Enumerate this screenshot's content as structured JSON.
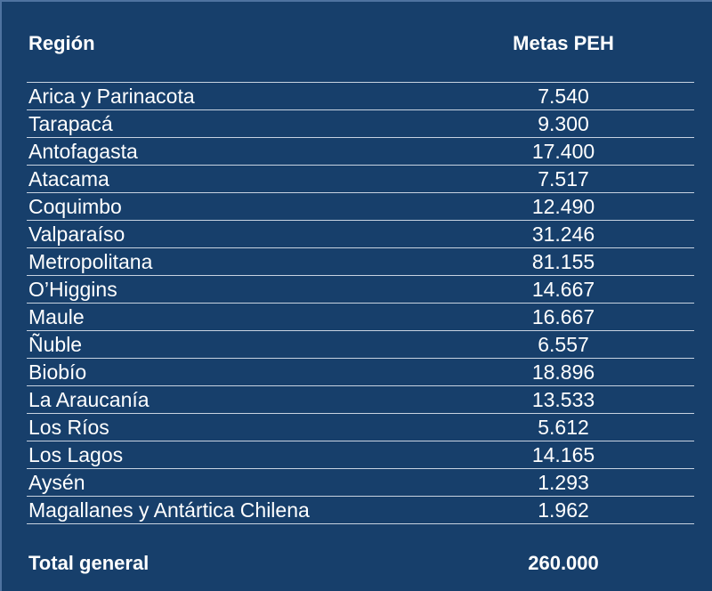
{
  "chart_data": {
    "type": "table",
    "columns": [
      "Región",
      "Metas PEH"
    ],
    "rows": [
      {
        "region": "Arica y Parinacota",
        "value": "7.540"
      },
      {
        "region": "Tarapacá",
        "value": "9.300"
      },
      {
        "region": "Antofagasta",
        "value": "17.400"
      },
      {
        "region": "Atacama",
        "value": "7.517"
      },
      {
        "region": "Coquimbo",
        "value": "12.490"
      },
      {
        "region": "Valparaíso",
        "value": "31.246"
      },
      {
        "region": "Metropolitana",
        "value": "81.155"
      },
      {
        "region": "O’Higgins",
        "value": "14.667"
      },
      {
        "region": "Maule",
        "value": "16.667"
      },
      {
        "region": "Ñuble",
        "value": "6.557"
      },
      {
        "region": "Biobío",
        "value": "18.896"
      },
      {
        "region": "La Araucanía",
        "value": "13.533"
      },
      {
        "region": "Los Ríos",
        "value": "5.612"
      },
      {
        "region": "Los Lagos",
        "value": "14.165"
      },
      {
        "region": "Aysén",
        "value": "1.293"
      },
      {
        "region": "Magallanes y Antártica Chilena",
        "value": "1.962"
      }
    ],
    "total": {
      "label": "Total general",
      "value": "260.000"
    }
  },
  "colors": {
    "background": "#173f6b",
    "rule": "#c8d3e1",
    "text": "#ffffff"
  }
}
